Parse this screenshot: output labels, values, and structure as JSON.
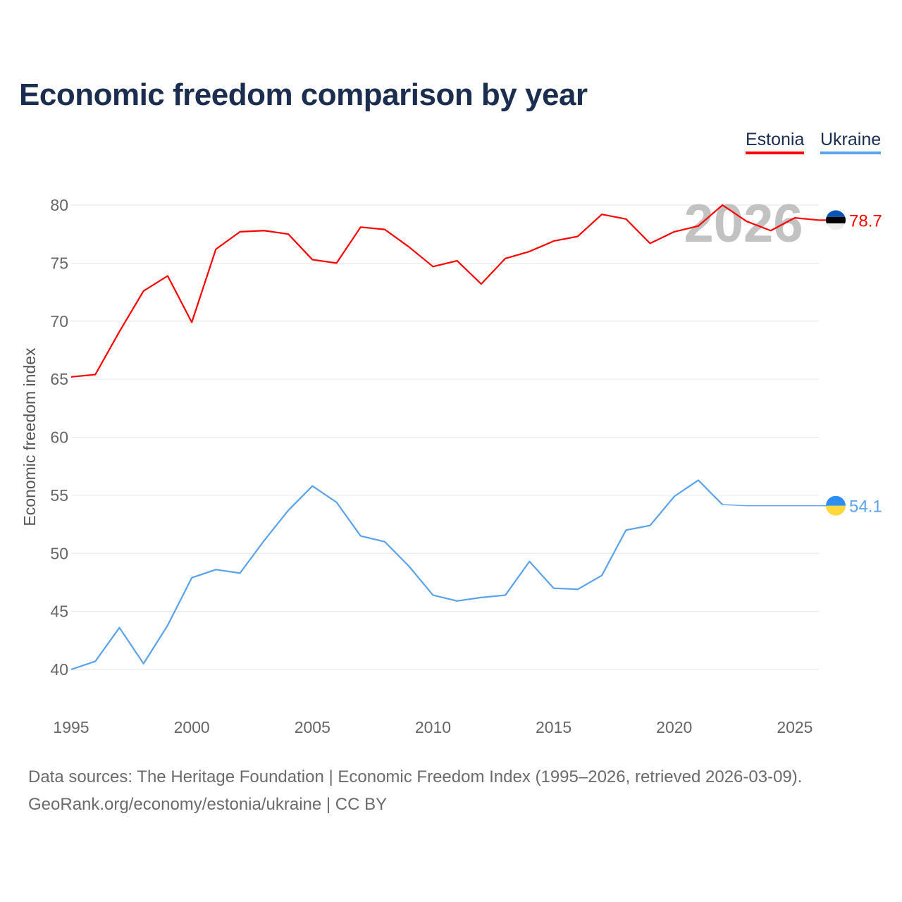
{
  "title": "Economic freedom comparison by year",
  "legend": [
    {
      "label": "Estonia",
      "color": "#ff0000"
    },
    {
      "label": "Ukraine",
      "color": "#5aa2ea"
    }
  ],
  "year_watermark": "2026",
  "footer": {
    "line1": "Data sources: The Heritage Foundation | Economic Freedom Index (1995–2026, retrieved 2026-03-09).",
    "line2": "GeoRank.org/economy/estonia/ukraine | CC BY"
  },
  "chart_data": {
    "type": "line",
    "title": "Economic freedom comparison by year",
    "xlabel": "",
    "ylabel": "Economic freedom index",
    "xlim": [
      1995,
      2026
    ],
    "ylim": [
      37,
      82
    ],
    "yticks": [
      40,
      45,
      50,
      55,
      60,
      65,
      70,
      75,
      80
    ],
    "xticks": [
      1995,
      2000,
      2005,
      2010,
      2015,
      2020,
      2025
    ],
    "grid": true,
    "legend_position": "top-right",
    "x": [
      1995,
      1996,
      1997,
      1998,
      1999,
      2000,
      2001,
      2002,
      2003,
      2004,
      2005,
      2006,
      2007,
      2008,
      2009,
      2010,
      2011,
      2012,
      2013,
      2014,
      2015,
      2016,
      2017,
      2018,
      2019,
      2020,
      2021,
      2022,
      2023,
      2024,
      2025,
      2026
    ],
    "series": [
      {
        "name": "Estonia",
        "color": "#ff0000",
        "end_label": "78.7",
        "values": [
          65.2,
          65.4,
          69.1,
          72.6,
          73.9,
          69.9,
          76.2,
          77.7,
          77.8,
          77.5,
          75.3,
          75.0,
          78.1,
          77.9,
          76.4,
          74.7,
          75.2,
          73.2,
          75.4,
          76.0,
          76.9,
          77.3,
          79.2,
          78.8,
          76.7,
          77.7,
          78.2,
          80.0,
          78.6,
          77.8,
          78.9,
          78.7
        ]
      },
      {
        "name": "Ukraine",
        "color": "#5aa2ea",
        "end_label": "54.1",
        "values": [
          40.0,
          40.7,
          43.6,
          40.5,
          43.8,
          47.9,
          48.6,
          48.3,
          51.1,
          53.7,
          55.8,
          54.4,
          51.5,
          51.0,
          48.9,
          46.4,
          45.9,
          46.2,
          46.4,
          49.3,
          47.0,
          46.9,
          48.1,
          52.0,
          52.4,
          54.9,
          56.3,
          54.2,
          54.1,
          54.1,
          54.1,
          54.1
        ]
      }
    ]
  }
}
